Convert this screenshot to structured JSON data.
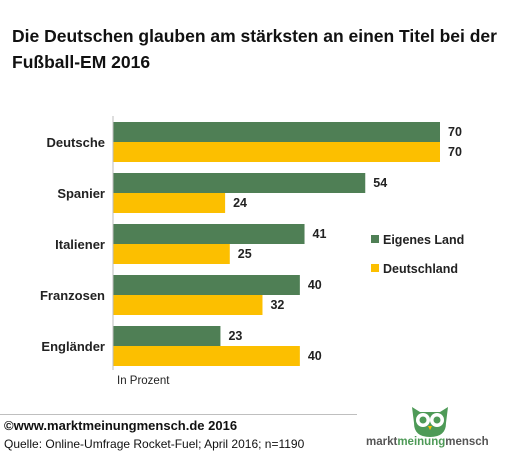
{
  "title": "Die Deutschen glauben am stärksten an einen Titel bei der Fußball-EM 2016",
  "colors": {
    "eigenes_land": "#4f7f55",
    "deutschland": "#fcbf00"
  },
  "chart_data": {
    "type": "bar",
    "orientation": "horizontal",
    "categories": [
      "Deutsche",
      "Spanier",
      "Italiener",
      "Franzosen",
      "Engländer"
    ],
    "series": [
      {
        "name": "Eigenes Land",
        "values": [
          70,
          54,
          41,
          40,
          23
        ]
      },
      {
        "name": "Deutschland",
        "values": [
          70,
          24,
          25,
          32,
          40
        ]
      }
    ],
    "xlim": [
      0,
      70
    ],
    "unit_note": "In Prozent",
    "legend_placement": "right",
    "grid": false
  },
  "footer": {
    "copyright": "©www.marktmeinungmensch.de  2016",
    "source": "Quelle: Online-Umfrage Rocket-Fuel; April 2016; n=1190"
  },
  "logo": {
    "part1": "markt",
    "part2": "meinung",
    "part3": "mensch"
  }
}
